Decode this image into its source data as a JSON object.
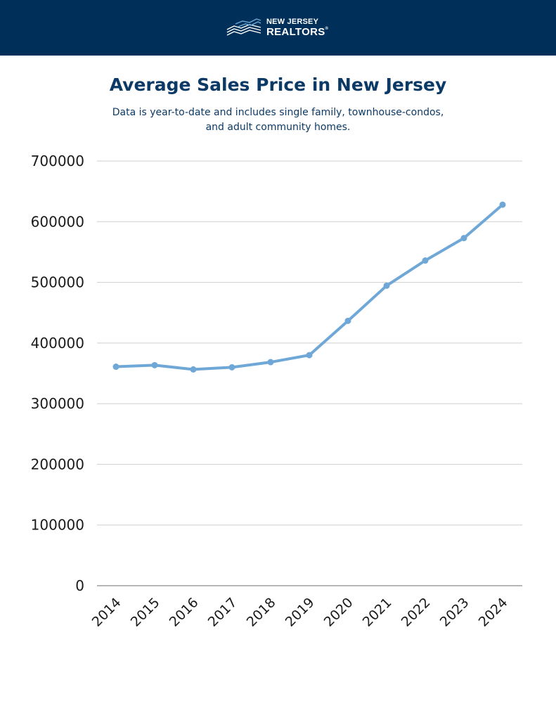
{
  "header": {
    "logo_line1": "NEW JERSEY",
    "logo_line2": "REALTORS",
    "logo_mark": "®",
    "logo_icon": "building-skyline-icon",
    "background_color": "#00305a"
  },
  "chart_data": {
    "type": "line",
    "title": "Average Sales Price in New Jersey",
    "subtitle_lines": [
      "Data is year-to-date and includes single family, townhouse-condos,",
      "and adult community homes."
    ],
    "xlabel": "",
    "ylabel": "",
    "categories": [
      "2014",
      "2015",
      "2016",
      "2017",
      "2018",
      "2019",
      "2020",
      "2021",
      "2022",
      "2023",
      "2024"
    ],
    "series": [
      {
        "values": [
          361000,
          363500,
          356500,
          360000,
          368500,
          380000,
          436500,
          494500,
          536000,
          573000,
          628000
        ],
        "color": "#6fa8d6"
      }
    ],
    "ylim": [
      0,
      700000
    ],
    "yticks": [
      "0",
      "100000",
      "200000",
      "300000",
      "400000",
      "500000",
      "600000",
      "700000"
    ],
    "grid": true,
    "legend": "none"
  }
}
